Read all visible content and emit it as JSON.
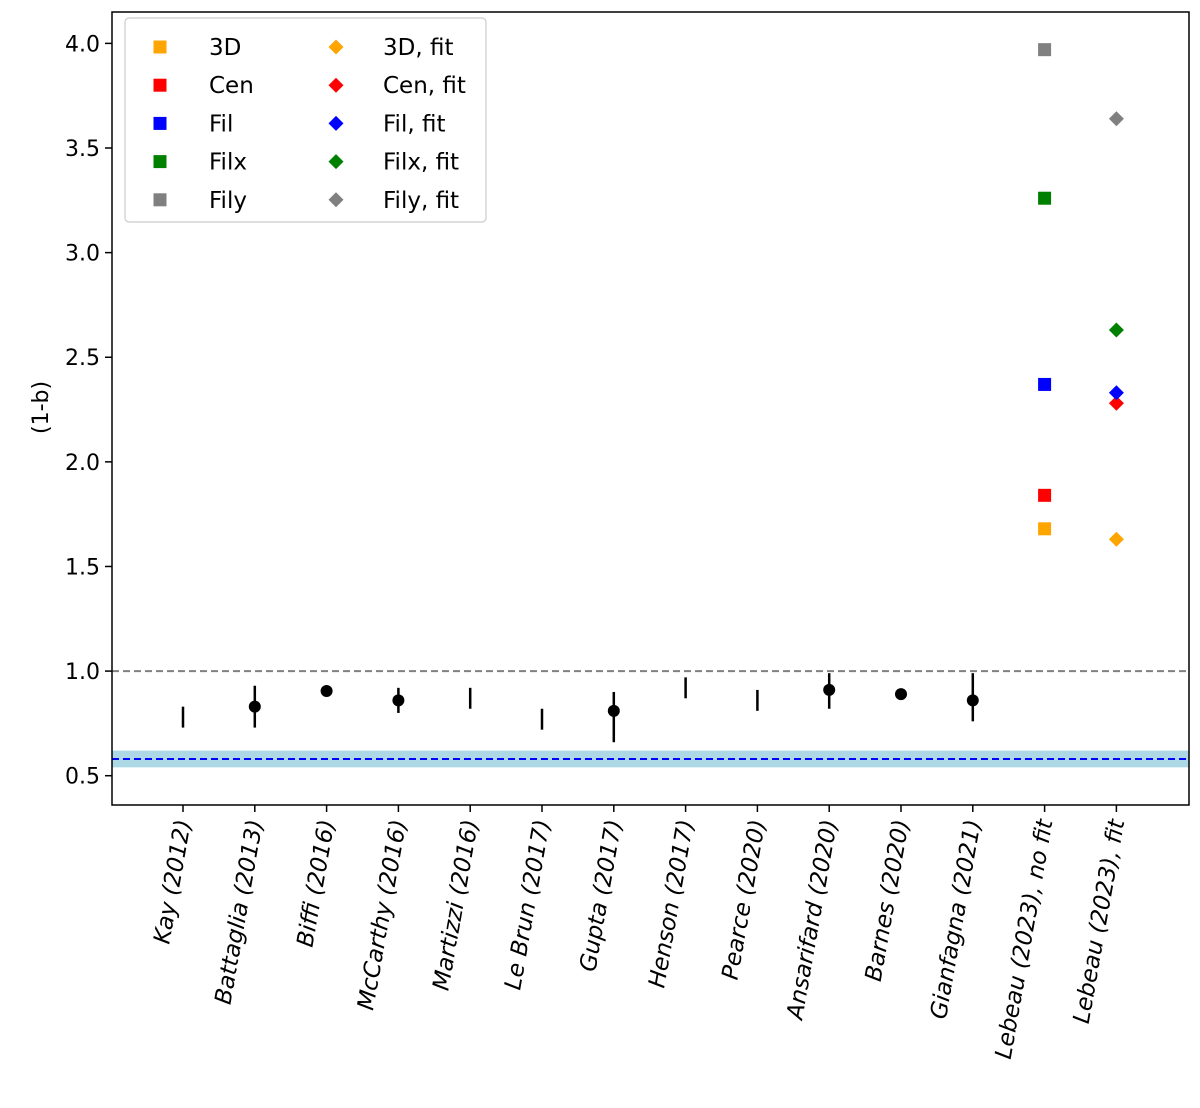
{
  "chart_data": {
    "type": "scatter",
    "title": "",
    "xlabel": "",
    "ylabel": "(1-b)",
    "ylim": [
      0.36,
      4.15
    ],
    "yticks": [
      0.5,
      1.0,
      1.5,
      2.0,
      2.5,
      3.0,
      3.5,
      4.0
    ],
    "ytick_labels": [
      "0.5",
      "1.0",
      "1.5",
      "2.0",
      "2.5",
      "3.0",
      "3.5",
      "4.0"
    ],
    "grid": false,
    "legend_position": "top-left",
    "categories": [
      "Kay (2012)",
      "Battaglia (2013)",
      "Biffi (2016)",
      "McCarthy (2016)",
      "Martizzi (2016)",
      "Le Brun (2017)",
      "Gupta (2017)",
      "Henson (2017)",
      "Pearce (2020)",
      "Ansarifard (2020)",
      "Barnes (2020)",
      "Gianfagna (2021)",
      "Lebeau (2023), no fit",
      "Lebeau (2023), fit"
    ],
    "literature": [
      {
        "category": "Kay (2012)",
        "y": null,
        "low": 0.73,
        "high": 0.83
      },
      {
        "category": "Battaglia (2013)",
        "y": 0.83,
        "low": 0.73,
        "high": 0.93
      },
      {
        "category": "Biffi (2016)",
        "y": 0.905,
        "low": null,
        "high": null
      },
      {
        "category": "McCarthy (2016)",
        "y": 0.86,
        "low": 0.8,
        "high": 0.92
      },
      {
        "category": "Martizzi (2016)",
        "y": null,
        "low": 0.82,
        "high": 0.92
      },
      {
        "category": "Le Brun (2017)",
        "y": null,
        "low": 0.72,
        "high": 0.82
      },
      {
        "category": "Gupta (2017)",
        "y": 0.81,
        "low": 0.66,
        "high": 0.9
      },
      {
        "category": "Henson (2017)",
        "y": null,
        "low": 0.87,
        "high": 0.97
      },
      {
        "category": "Pearce (2020)",
        "y": null,
        "low": 0.81,
        "high": 0.91
      },
      {
        "category": "Ansarifard (2020)",
        "y": 0.91,
        "low": 0.82,
        "high": 0.99
      },
      {
        "category": "Barnes (2020)",
        "y": 0.89,
        "low": null,
        "high": null
      },
      {
        "category": "Gianfagna (2021)",
        "y": 0.86,
        "low": 0.76,
        "high": 0.99
      }
    ],
    "series": [
      {
        "name": "3D",
        "marker": "square",
        "color": "#ffa500",
        "category": "Lebeau (2023), no fit",
        "y": 1.68
      },
      {
        "name": "Cen",
        "marker": "square",
        "color": "#ff0000",
        "category": "Lebeau (2023), no fit",
        "y": 1.84
      },
      {
        "name": "Fil",
        "marker": "square",
        "color": "#0000ff",
        "category": "Lebeau (2023), no fit",
        "y": 2.37
      },
      {
        "name": "Filx",
        "marker": "square",
        "color": "#008000",
        "category": "Lebeau (2023), no fit",
        "y": 3.26
      },
      {
        "name": "Fily",
        "marker": "square",
        "color": "#808080",
        "category": "Lebeau (2023), no fit",
        "y": 3.97
      },
      {
        "name": "3D, fit",
        "marker": "diamond",
        "color": "#ffa500",
        "category": "Lebeau (2023), fit",
        "y": 1.63
      },
      {
        "name": "Cen, fit",
        "marker": "diamond",
        "color": "#ff0000",
        "category": "Lebeau (2023), fit",
        "y": 2.28
      },
      {
        "name": "Fil, fit",
        "marker": "diamond",
        "color": "#0000ff",
        "category": "Lebeau (2023), fit",
        "y": 2.33
      },
      {
        "name": "Filx, fit",
        "marker": "diamond",
        "color": "#008000",
        "category": "Lebeau (2023), fit",
        "y": 2.63
      },
      {
        "name": "Fily, fit",
        "marker": "diamond",
        "color": "#808080",
        "category": "Lebeau (2023), fit",
        "y": 3.64
      }
    ],
    "reference_lines": [
      {
        "y": 1.0,
        "color": "#808080",
        "style": "dashed"
      },
      {
        "y": 0.58,
        "color": "#0000ff",
        "style": "dashed",
        "band_low": 0.54,
        "band_high": 0.62,
        "band_color": "#add8e6"
      }
    ]
  }
}
